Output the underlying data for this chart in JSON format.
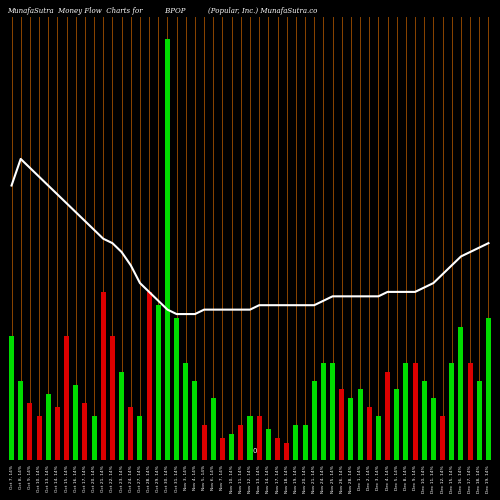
{
  "title_left": "MunafaSutra  Money Flow  Charts for",
  "title_mid": "BPOP",
  "title_right": "(Popular, Inc.) MunafaSutra.co",
  "bg_color": "#000000",
  "bar_line_color": "#8B4500",
  "line_color": "#ffffff",
  "green_color": "#00dd00",
  "red_color": "#dd0000",
  "categories": [
    "Oct 7, 14%",
    "Oct 8, 14%",
    "Oct 9, 14%",
    "Oct 10, 14%",
    "Oct 13, 14%",
    "Oct 14, 14%",
    "Oct 15, 14%",
    "Oct 16, 14%",
    "Oct 17, 14%",
    "Oct 20, 14%",
    "Oct 21, 14%",
    "Oct 22, 14%",
    "Oct 23, 14%",
    "Oct 24, 14%",
    "Oct 27, 14%",
    "Oct 28, 14%",
    "Oct 29, 14%",
    "Oct 30, 14%",
    "Oct 31, 14%",
    "Nov 3, 14%",
    "Nov 4, 14%",
    "Nov 5, 14%",
    "Nov 6, 14%",
    "Nov 7, 14%",
    "Nov 10, 14%",
    "Nov 11, 14%",
    "Nov 12, 14%",
    "Nov 13, 14%",
    "Nov 14, 14%",
    "Nov 17, 14%",
    "Nov 18, 14%",
    "Nov 19, 14%",
    "Nov 20, 14%",
    "Nov 21, 14%",
    "Nov 24, 14%",
    "Nov 25, 14%",
    "Nov 26, 14%",
    "Nov 28, 14%",
    "Dec 1, 14%",
    "Dec 2, 14%",
    "Dec 3, 14%",
    "Dec 4, 14%",
    "Dec 5, 14%",
    "Dec 8, 14%",
    "Dec 9, 14%",
    "Dec 10, 14%",
    "Dec 11, 14%",
    "Dec 12, 14%",
    "Dec 15, 14%",
    "Dec 16, 14%",
    "Dec 17, 14%",
    "Dec 18, 14%",
    "Dec 19, 14%"
  ],
  "bar_values": [
    28,
    18,
    13,
    10,
    15,
    12,
    28,
    17,
    13,
    10,
    38,
    28,
    20,
    12,
    10,
    38,
    35,
    95,
    32,
    22,
    18,
    8,
    14,
    5,
    6,
    8,
    10,
    10,
    7,
    5,
    4,
    8,
    8,
    18,
    22,
    22,
    16,
    14,
    16,
    12,
    10,
    20,
    16,
    22,
    22,
    18,
    14,
    10,
    22,
    30,
    22,
    18,
    32
  ],
  "bar_colors": [
    "green",
    "green",
    "red",
    "red",
    "green",
    "red",
    "red",
    "green",
    "red",
    "green",
    "red",
    "red",
    "green",
    "red",
    "green",
    "red",
    "green",
    "green",
    "green",
    "green",
    "green",
    "red",
    "green",
    "red",
    "green",
    "red",
    "green",
    "red",
    "green",
    "red",
    "red",
    "green",
    "green",
    "green",
    "green",
    "green",
    "red",
    "green",
    "green",
    "red",
    "green",
    "red",
    "green",
    "green",
    "red",
    "green",
    "green",
    "red",
    "green",
    "green",
    "red",
    "green",
    "green"
  ],
  "line_values": [
    62,
    68,
    66,
    64,
    62,
    60,
    58,
    56,
    54,
    52,
    50,
    49,
    47,
    44,
    40,
    38,
    36,
    34,
    33,
    33,
    33,
    34,
    34,
    34,
    34,
    34,
    34,
    35,
    35,
    35,
    35,
    35,
    35,
    35,
    36,
    37,
    37,
    37,
    37,
    37,
    37,
    38,
    38,
    38,
    38,
    39,
    40,
    42,
    44,
    46,
    47,
    48,
    49
  ],
  "ylim_max": 100,
  "xlim_padding": 0.5
}
